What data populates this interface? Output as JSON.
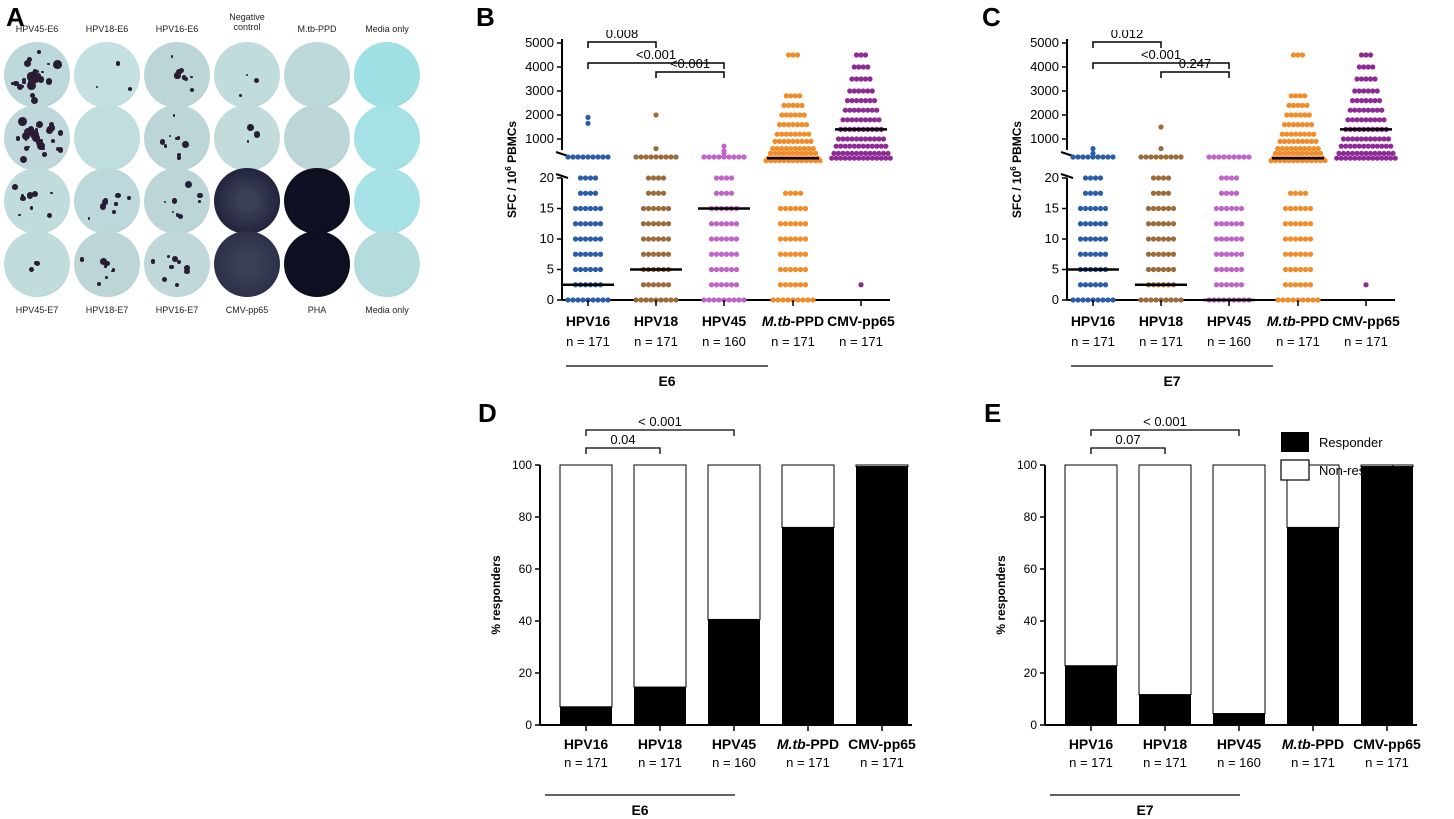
{
  "panels": {
    "A": "A",
    "B": "B",
    "C": "C",
    "D": "D",
    "E": "E"
  },
  "wells": {
    "top_labels": [
      {
        "line1": "HPV45-E6",
        "line2": ""
      },
      {
        "line1": "HPV18-E6",
        "line2": ""
      },
      {
        "line1": "HPV16-E6",
        "line2": ""
      },
      {
        "line1": "Negative",
        "line2": "control"
      },
      {
        "line1": "M.tb-PPD",
        "line2": ""
      },
      {
        "line1": "Media only",
        "line2": ""
      }
    ],
    "bottom_labels": [
      "HPV45-E7",
      "HPV18-E7",
      "HPV16-E7",
      "CMV-pp65",
      "PHA",
      "Media only"
    ],
    "rows": [
      [
        {
          "density": "high",
          "color": "#bcd8da"
        },
        {
          "density": "sparse",
          "color": "#c4e0e0"
        },
        {
          "density": "medium",
          "color": "#bcd6d8"
        },
        {
          "density": "sparse",
          "color": "#c0dcdc"
        },
        {
          "density": "none",
          "color": "#bcd8d8"
        },
        {
          "density": "none",
          "color": "#9fe0e4"
        }
      ],
      [
        {
          "density": "high",
          "color": "#c0d8dc"
        },
        {
          "density": "none",
          "color": "#c0dede"
        },
        {
          "density": "medium",
          "color": "#bcd6d8"
        },
        {
          "density": "sparse",
          "color": "#c2dcdc"
        },
        {
          "density": "none",
          "color": "#bcd6d8"
        },
        {
          "density": "none",
          "color": "#a4e2e6"
        }
      ],
      [
        {
          "density": "medium",
          "color": "#c0dcdc"
        },
        {
          "density": "medium",
          "color": "#bcd8da"
        },
        {
          "density": "medium",
          "color": "#bcd6d8"
        },
        {
          "density": "dark",
          "color": "#1c1e36"
        },
        {
          "density": "black",
          "color": "#0a0a1c"
        },
        {
          "density": "none",
          "color": "#a6e2e6"
        }
      ],
      [
        {
          "density": "sparse",
          "color": "#c0dcdc"
        },
        {
          "density": "medium",
          "color": "#bcd6d8"
        },
        {
          "density": "medium",
          "color": "#c0d8da"
        },
        {
          "density": "dark",
          "color": "#2a2e46"
        },
        {
          "density": "black",
          "color": "#0c0c1e"
        },
        {
          "density": "none",
          "color": "#b4dcdc"
        }
      ]
    ]
  },
  "chart_data": [
    {
      "id": "B",
      "type": "scatter",
      "ylabel": "SFC / 10",
      "ylabel_sup": "6",
      "ylabel_suffix": " PBMCs",
      "yaxis_upper": {
        "range": [
          0,
          5000
        ],
        "ticks": [
          "1000",
          "2000",
          "3000",
          "4000",
          "5000"
        ]
      },
      "yaxis_lower": {
        "range": [
          0,
          20
        ],
        "ticks": [
          "0",
          "5",
          "10",
          "15",
          "20"
        ]
      },
      "categories": [
        {
          "name": "HPV16",
          "n": "n = 171",
          "color": "#2a5caa",
          "median": 2.5,
          "lower_values": [
            0,
            2.5,
            5,
            7.5,
            10,
            12.5,
            15,
            17.5,
            20
          ],
          "upper_values": [
            1900,
            1650
          ],
          "top_cluster": true
        },
        {
          "name": "HPV18",
          "n": "n = 171",
          "color": "#9c6b3a",
          "median": 5,
          "lower_values": [
            0,
            2.5,
            5,
            7.5,
            10,
            12.5,
            15,
            17.5,
            20
          ],
          "upper_values": [
            2000,
            600
          ],
          "top_cluster": true
        },
        {
          "name": "HPV45",
          "n": "n = 160",
          "color": "#c065c8",
          "median": 15,
          "lower_values": [
            0,
            2.5,
            5,
            7.5,
            10,
            12.5,
            15,
            17.5,
            20
          ],
          "upper_values": [
            700,
            500,
            400
          ],
          "top_cluster": true
        },
        {
          "name_italic": "M.tb",
          "name_rest": "-PPD",
          "n": "n = 171",
          "color": "#f28c28",
          "median": 200,
          "lower_values": [
            0,
            2.5,
            5,
            7.5,
            10,
            12.5,
            15,
            17.5
          ],
          "upper_values": [
            4500,
            2800,
            2400,
            2000,
            1600,
            1200,
            900,
            600,
            400,
            200,
            100
          ],
          "top_cluster": false
        },
        {
          "name": "CMV-pp65",
          "n": "n = 171",
          "color": "#8e2a96",
          "median": 1400,
          "lower_values": [
            2.5
          ],
          "upper_values": [
            4500,
            4000,
            3500,
            3000,
            2600,
            2200,
            1800,
            1400,
            1000,
            700,
            400,
            200
          ],
          "top_cluster": false
        }
      ],
      "comparisons": [
        {
          "label": "0.008",
          "from": 0,
          "to": 1
        },
        {
          "label": "<0.001",
          "from": 0,
          "to": 2
        },
        {
          "label": "<0.001",
          "from": 1,
          "to": 2
        }
      ],
      "group_label": "E6"
    },
    {
      "id": "C",
      "type": "scatter",
      "ylabel": "SFC / 10",
      "ylabel_sup": "6",
      "ylabel_suffix": " PBMCs",
      "yaxis_upper": {
        "range": [
          0,
          5000
        ],
        "ticks": [
          "1000",
          "2000",
          "3000",
          "4000",
          "5000"
        ]
      },
      "yaxis_lower": {
        "range": [
          0,
          20
        ],
        "ticks": [
          "0",
          "5",
          "10",
          "15",
          "20"
        ]
      },
      "categories": [
        {
          "name": "HPV16",
          "n": "n = 171",
          "color": "#2a5caa",
          "median": 5,
          "lower_values": [
            0,
            2.5,
            5,
            7.5,
            10,
            12.5,
            15,
            17.5,
            20
          ],
          "upper_values": [
            600,
            400
          ],
          "top_cluster": true
        },
        {
          "name": "HPV18",
          "n": "n = 171",
          "color": "#9c6b3a",
          "median": 2.5,
          "lower_values": [
            0,
            2.5,
            5,
            7.5,
            10,
            12.5,
            15,
            17.5,
            20
          ],
          "upper_values": [
            1500,
            600
          ],
          "top_cluster": true
        },
        {
          "name": "HPV45",
          "n": "n = 160",
          "color": "#c065c8",
          "median": 0,
          "lower_values": [
            0,
            2.5,
            5,
            7.5,
            10,
            12.5,
            15,
            17.5,
            20
          ],
          "upper_values": [],
          "top_cluster": true
        },
        {
          "name_italic": "M.tb",
          "name_rest": "-PPD",
          "n": "n = 171",
          "color": "#f28c28",
          "median": 200,
          "lower_values": [
            0,
            2.5,
            5,
            7.5,
            10,
            12.5,
            15,
            17.5
          ],
          "upper_values": [
            4500,
            2800,
            2400,
            2000,
            1600,
            1200,
            900,
            600,
            400,
            200,
            100
          ],
          "top_cluster": false
        },
        {
          "name": "CMV-pp65",
          "n": "n = 171",
          "color": "#8e2a96",
          "median": 1400,
          "lower_values": [
            2.5
          ],
          "upper_values": [
            4500,
            4000,
            3500,
            3000,
            2600,
            2200,
            1800,
            1400,
            1000,
            700,
            400,
            200
          ],
          "top_cluster": false
        }
      ],
      "comparisons": [
        {
          "label": "0.012",
          "from": 0,
          "to": 1
        },
        {
          "label": "<0.001",
          "from": 0,
          "to": 2
        },
        {
          "label": "0.247",
          "from": 1,
          "to": 2
        }
      ],
      "group_label": "E7"
    },
    {
      "id": "D",
      "type": "bar",
      "stacked": true,
      "ylabel": "% responders",
      "ylim": [
        0,
        100
      ],
      "yticks": [
        "0",
        "20",
        "40",
        "60",
        "80",
        "100"
      ],
      "categories": [
        "HPV16",
        "HPV18",
        "HPV45",
        "M.tb-PPD",
        "CMV-pp65"
      ],
      "n_labels": [
        "n = 171",
        "n = 171",
        "n = 160",
        "n = 171",
        "n = 171"
      ],
      "series": [
        {
          "name": "Responder",
          "values": [
            7,
            14.6,
            40.6,
            76,
            99.4
          ]
        },
        {
          "name": "Non-responder",
          "values": [
            93,
            85.4,
            59.4,
            24,
            0.6
          ]
        }
      ],
      "comparisons": [
        {
          "label": "0.04",
          "from": 0,
          "to": 1
        },
        {
          "label": "< 0.001",
          "from": 0,
          "to": 2
        }
      ],
      "group_label": "E6"
    },
    {
      "id": "E",
      "type": "bar",
      "stacked": true,
      "ylabel": "% responders",
      "ylim": [
        0,
        100
      ],
      "yticks": [
        "0",
        "20",
        "40",
        "60",
        "80",
        "100"
      ],
      "categories": [
        "HPV16",
        "HPV18",
        "HPV45",
        "M.tb-PPD",
        "CMV-pp65"
      ],
      "n_labels": [
        "n = 171",
        "n = 171",
        "n = 160",
        "n = 171",
        "n = 171"
      ],
      "series": [
        {
          "name": "Responder",
          "values": [
            22.8,
            11.7,
            4.4,
            76,
            99.4
          ]
        },
        {
          "name": "Non-responder",
          "values": [
            77.2,
            88.3,
            95.6,
            24,
            0.6
          ]
        }
      ],
      "comparisons": [
        {
          "label": "0.07",
          "from": 0,
          "to": 1
        },
        {
          "label": "< 0.001",
          "from": 0,
          "to": 2
        }
      ],
      "group_label": "E7",
      "legend": {
        "position": "top-right",
        "entries": [
          "Responder",
          "Non-responder"
        ]
      }
    }
  ]
}
